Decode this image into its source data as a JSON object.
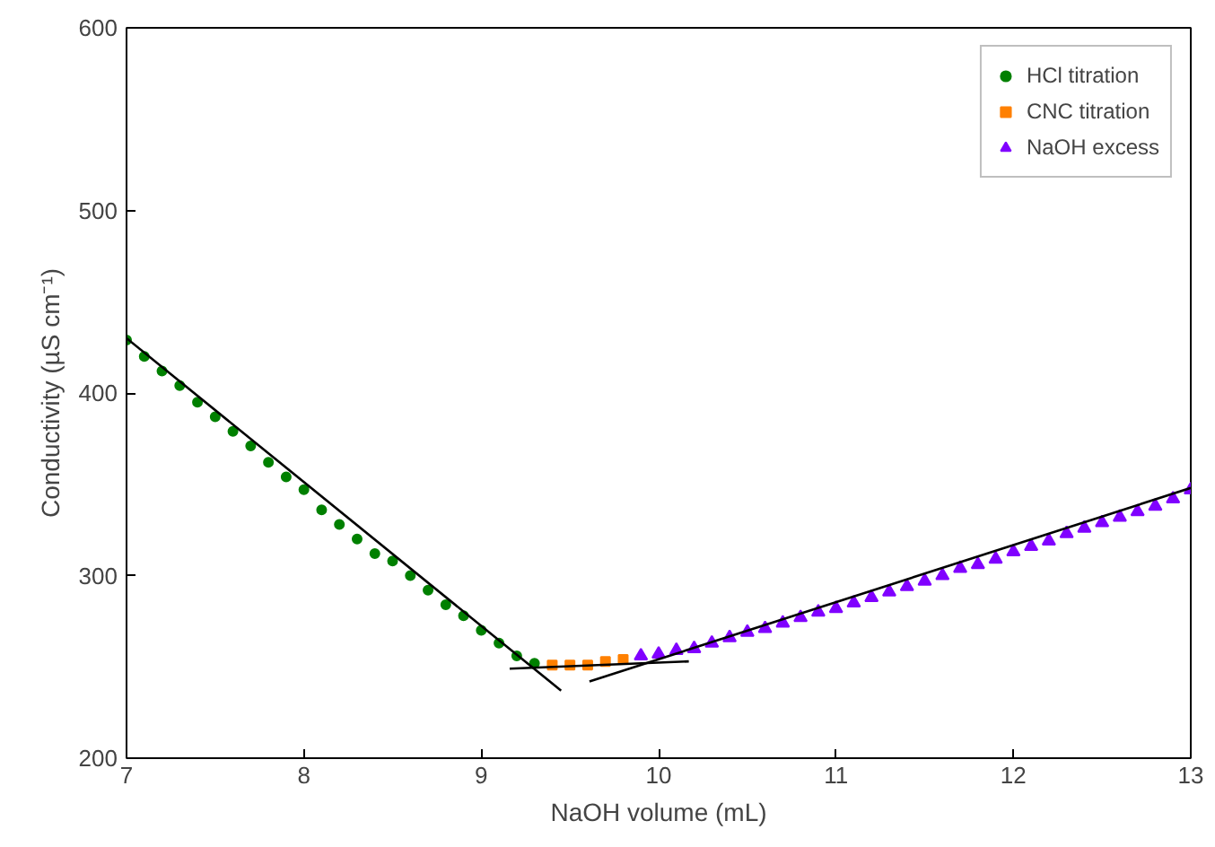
{
  "chart_data": {
    "type": "scatter",
    "xlabel": "NaOH volume (mL)",
    "ylabel": "Conductivity (µS cm⁻¹)",
    "xlim": [
      7,
      13
    ],
    "ylim": [
      200,
      600
    ],
    "xticks": [
      7,
      8,
      9,
      10,
      11,
      12,
      13
    ],
    "yticks": [
      200,
      300,
      400,
      500,
      600
    ],
    "grid": false,
    "legend": "top right",
    "series": [
      {
        "name": "HCl titration",
        "color": "#008000",
        "marker": "circle",
        "x": [
          7.0,
          7.1,
          7.2,
          7.3,
          7.4,
          7.5,
          7.6,
          7.7,
          7.8,
          7.9,
          8.0,
          8.1,
          8.2,
          8.3,
          8.4,
          8.5,
          8.6,
          8.7,
          8.8,
          8.9,
          9.0,
          9.1,
          9.2,
          9.3
        ],
        "values": [
          429,
          420,
          412,
          404,
          395,
          387,
          379,
          371,
          362,
          354,
          347,
          336,
          328,
          320,
          312,
          308,
          300,
          292,
          284,
          278,
          270,
          263,
          256,
          252
        ]
      },
      {
        "name": "CNC titration",
        "color": "#ff8000",
        "marker": "square",
        "x": [
          9.4,
          9.5,
          9.6,
          9.7,
          9.8
        ],
        "values": [
          251,
          251,
          251,
          253,
          254
        ]
      },
      {
        "name": "NaOH excess",
        "color": "#8000ff",
        "marker": "triangle",
        "x": [
          9.9,
          10.0,
          10.1,
          10.2,
          10.3,
          10.4,
          10.5,
          10.6,
          10.7,
          10.8,
          10.9,
          11.0,
          11.1,
          11.2,
          11.3,
          11.4,
          11.5,
          11.6,
          11.7,
          11.8,
          11.9,
          12.0,
          12.1,
          12.2,
          12.3,
          12.4,
          12.5,
          12.6,
          12.7,
          12.8,
          12.9,
          13.0
        ],
        "values": [
          256,
          257,
          259,
          260,
          263,
          266,
          269,
          271,
          274,
          277,
          280,
          282,
          285,
          288,
          291,
          294,
          297,
          300,
          304,
          306,
          309,
          313,
          316,
          319,
          323,
          326,
          329,
          332,
          335,
          338,
          342,
          347
        ]
      },
      {
        "type": "line",
        "color": "#000000",
        "marker": "none",
        "x": [
          7.0,
          9.45
        ],
        "values": [
          430,
          237
        ]
      },
      {
        "type": "line",
        "color": "#000000",
        "marker": "none",
        "x": [
          9.16,
          10.17
        ],
        "values": [
          249,
          253
        ]
      },
      {
        "type": "line",
        "color": "#000000",
        "marker": "none",
        "x": [
          9.61,
          13.0
        ],
        "values": [
          242,
          348
        ]
      }
    ]
  }
}
